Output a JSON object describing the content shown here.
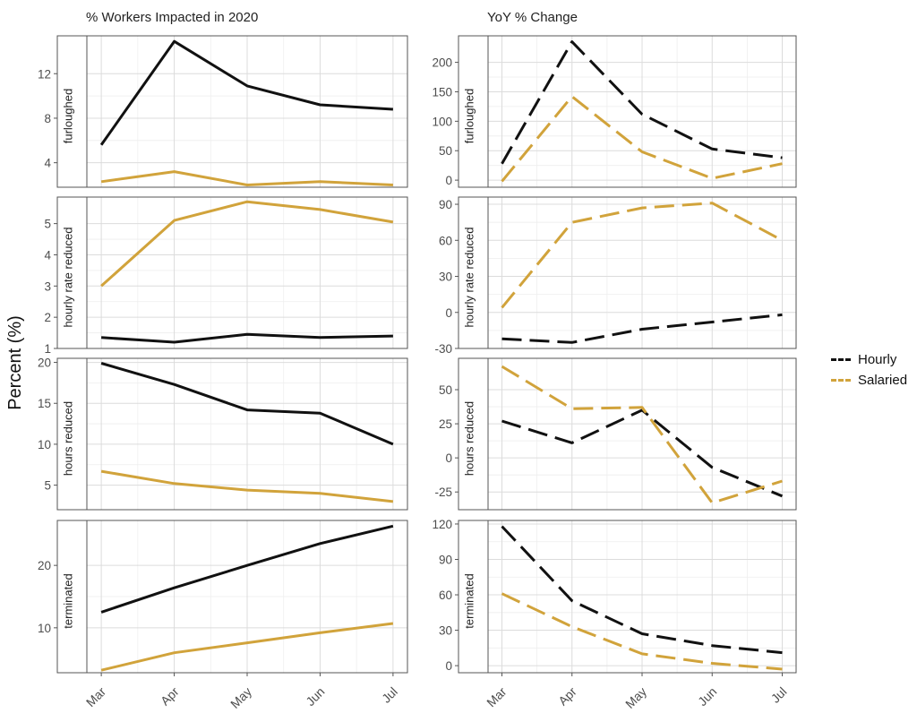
{
  "ylabel": "Percent (%)",
  "legend": {
    "entries": [
      {
        "label": "Hourly",
        "color": "#111111"
      },
      {
        "label": "Salaried",
        "color": "#d1a33b"
      }
    ]
  },
  "chart_data": [
    {
      "type": "line",
      "title": "% Workers Impacted in 2020",
      "categories": [
        "Mar",
        "Apr",
        "May",
        "Jun",
        "Jul"
      ],
      "line_style": "solid",
      "panels": [
        {
          "strip_label": "furloughed",
          "ylim": [
            1.8,
            15.4
          ],
          "yticks": [
            4,
            8,
            12
          ],
          "series": [
            {
              "name": "Hourly",
              "color": "#111111",
              "values": [
                5.6,
                14.9,
                10.9,
                9.2,
                8.8
              ]
            },
            {
              "name": "Salaried",
              "color": "#d1a33b",
              "values": [
                2.3,
                3.2,
                2.0,
                2.3,
                2.0
              ]
            }
          ]
        },
        {
          "strip_label": "hourly rate reduced",
          "ylim": [
            1.0,
            5.85
          ],
          "yticks": [
            1,
            2,
            3,
            4,
            5
          ],
          "series": [
            {
              "name": "Hourly",
              "color": "#111111",
              "values": [
                1.35,
                1.2,
                1.45,
                1.35,
                1.4
              ]
            },
            {
              "name": "Salaried",
              "color": "#d1a33b",
              "values": [
                3.0,
                5.1,
                5.7,
                5.45,
                5.05
              ]
            }
          ]
        },
        {
          "strip_label": "hours reduced",
          "ylim": [
            2.0,
            20.5
          ],
          "yticks": [
            5,
            10,
            15,
            20
          ],
          "series": [
            {
              "name": "Hourly",
              "color": "#111111",
              "values": [
                19.9,
                17.3,
                14.2,
                13.8,
                10.0
              ]
            },
            {
              "name": "Salaried",
              "color": "#d1a33b",
              "values": [
                6.7,
                5.2,
                4.4,
                4.0,
                3.0
              ]
            }
          ]
        },
        {
          "strip_label": "terminated",
          "ylim": [
            2.8,
            27.2
          ],
          "yticks": [
            10,
            20
          ],
          "series": [
            {
              "name": "Hourly",
              "color": "#111111",
              "values": [
                12.5,
                16.4,
                20.0,
                23.5,
                26.3
              ]
            },
            {
              "name": "Salaried",
              "color": "#d1a33b",
              "values": [
                3.2,
                6.0,
                7.6,
                9.2,
                10.7
              ]
            }
          ]
        }
      ]
    },
    {
      "type": "line",
      "title": "YoY % Change",
      "categories": [
        "Mar",
        "Apr",
        "May",
        "Jun",
        "Jul"
      ],
      "line_style": "dashed",
      "panels": [
        {
          "strip_label": "furloughed",
          "ylim": [
            -12,
            245
          ],
          "yticks": [
            0,
            50,
            100,
            150,
            200
          ],
          "series": [
            {
              "name": "Hourly",
              "color": "#111111",
              "values": [
                28,
                235,
                112,
                53,
                38
              ]
            },
            {
              "name": "Salaried",
              "color": "#d1a33b",
              "values": [
                -2,
                142,
                48,
                3,
                28
              ]
            }
          ]
        },
        {
          "strip_label": "hourly rate reduced",
          "ylim": [
            -30,
            96
          ],
          "yticks": [
            -30,
            0,
            30,
            60,
            90
          ],
          "series": [
            {
              "name": "Hourly",
              "color": "#111111",
              "values": [
                -22,
                -25,
                -14,
                -8,
                -2
              ]
            },
            {
              "name": "Salaried",
              "color": "#d1a33b",
              "values": [
                4,
                75,
                87,
                91,
                60
              ]
            }
          ]
        },
        {
          "strip_label": "hours reduced",
          "ylim": [
            -38,
            73
          ],
          "yticks": [
            -25,
            0,
            25,
            50
          ],
          "series": [
            {
              "name": "Hourly",
              "color": "#111111",
              "values": [
                27,
                11,
                35,
                -7,
                -28
              ]
            },
            {
              "name": "Salaried",
              "color": "#d1a33b",
              "values": [
                67,
                36,
                37,
                -33,
                -17
              ]
            }
          ]
        },
        {
          "strip_label": "terminated",
          "ylim": [
            -6,
            123
          ],
          "yticks": [
            0,
            30,
            60,
            90,
            120
          ],
          "series": [
            {
              "name": "Hourly",
              "color": "#111111",
              "values": [
                118,
                55,
                27,
                17,
                11
              ]
            },
            {
              "name": "Salaried",
              "color": "#d1a33b",
              "values": [
                61,
                33,
                10,
                2,
                -3
              ]
            }
          ]
        }
      ]
    }
  ]
}
